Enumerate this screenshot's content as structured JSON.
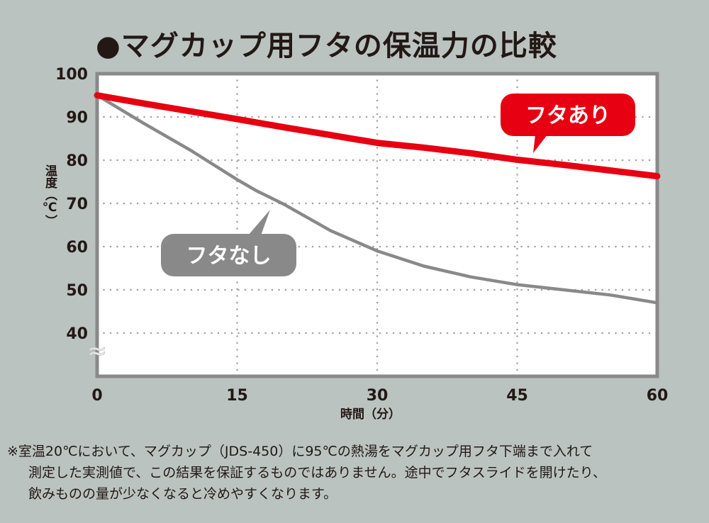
{
  "chart_data": {
    "type": "line",
    "title": "●マグカップ用フタの保温力の比較",
    "xlabel": "時間（分）",
    "ylabel": "温度（℃）",
    "xlim": [
      0,
      60
    ],
    "ylim": [
      30,
      100
    ],
    "axis_break_symbol": "≈",
    "x_ticks": [
      "0",
      "15",
      "30",
      "45",
      "60"
    ],
    "y_ticks": [
      "100",
      "90",
      "80",
      "70",
      "60",
      "50",
      "40"
    ],
    "grid": true,
    "series": [
      {
        "name": "フタあり",
        "color": "#e60012",
        "x": [
          0,
          5,
          10,
          15,
          20,
          25,
          30,
          35,
          40,
          45,
          50,
          55,
          60
        ],
        "values": [
          95,
          93.1,
          91.3,
          89.5,
          87.6,
          85.8,
          84,
          82.9,
          81.6,
          80.1,
          78.9,
          77.6,
          76.3
        ]
      },
      {
        "name": "フタなし",
        "color": "#898989",
        "x": [
          0,
          5,
          10,
          15,
          17,
          20,
          25,
          30,
          35,
          40,
          45,
          50,
          55,
          60
        ],
        "values": [
          95,
          88.5,
          82.3,
          75.5,
          73,
          69.8,
          63.7,
          59,
          55.5,
          53,
          51.2,
          50,
          48.8,
          47
        ]
      }
    ]
  },
  "footnote": [
    "※室温20℃において、マグカップ（JDS-450）に95℃の熱湯をマグカップ用フタ下端まで入れて",
    "測定した実測値で、この結果を保証するものではありません。途中でフタスライドを開けたり、",
    "飲みものの量が少なくなると冷めやすくなります。"
  ]
}
